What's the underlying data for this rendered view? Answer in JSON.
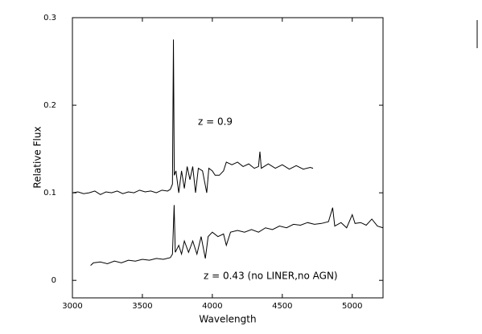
{
  "chart_data": {
    "type": "line",
    "xlabel": "Wavelength",
    "ylabel": "Relative Flux",
    "annotations": [
      "z = 0.9",
      "z = 0.43 (no LINER,no AGN)"
    ],
    "xlim": [
      3000,
      5220
    ],
    "ylim": [
      -0.02,
      0.3
    ],
    "xticks": [
      3000,
      3500,
      4000,
      4500,
      5000
    ],
    "yticks": [
      0,
      0.1,
      0.2,
      0.3
    ],
    "grid": false,
    "series": [
      {
        "color": "#000000",
        "x": [
          3000,
          3040,
          3080,
          3120,
          3160,
          3200,
          3240,
          3280,
          3320,
          3360,
          3400,
          3440,
          3480,
          3520,
          3560,
          3600,
          3640,
          3680,
          3700,
          3715,
          3722,
          3728,
          3740,
          3760,
          3780,
          3800,
          3820,
          3840,
          3860,
          3880,
          3900,
          3930,
          3960,
          3975,
          4000,
          4020,
          4050,
          4080,
          4100,
          4140,
          4180,
          4220,
          4260,
          4300,
          4330,
          4340,
          4350,
          4400,
          4450,
          4500,
          4550,
          4600,
          4650,
          4700,
          4720
        ],
        "values": [
          0.1,
          0.101,
          0.099,
          0.1,
          0.102,
          0.098,
          0.101,
          0.1,
          0.102,
          0.099,
          0.101,
          0.1,
          0.103,
          0.101,
          0.102,
          0.1,
          0.103,
          0.102,
          0.104,
          0.11,
          0.275,
          0.12,
          0.125,
          0.1,
          0.125,
          0.105,
          0.13,
          0.115,
          0.13,
          0.1,
          0.128,
          0.125,
          0.1,
          0.128,
          0.125,
          0.12,
          0.12,
          0.125,
          0.135,
          0.132,
          0.135,
          0.13,
          0.133,
          0.128,
          0.13,
          0.147,
          0.128,
          0.133,
          0.128,
          0.132,
          0.127,
          0.131,
          0.127,
          0.129,
          0.128
        ]
      },
      {
        "color": "#000000",
        "x": [
          3130,
          3150,
          3200,
          3250,
          3300,
          3350,
          3400,
          3450,
          3500,
          3550,
          3600,
          3650,
          3700,
          3715,
          3727,
          3735,
          3760,
          3780,
          3800,
          3830,
          3860,
          3890,
          3920,
          3950,
          3970,
          4000,
          4040,
          4080,
          4100,
          4130,
          4180,
          4230,
          4280,
          4330,
          4380,
          4430,
          4480,
          4530,
          4580,
          4630,
          4680,
          4730,
          4780,
          4830,
          4860,
          4875,
          4920,
          4960,
          5000,
          5020,
          5060,
          5100,
          5140,
          5180,
          5220
        ],
        "values": [
          0.017,
          0.02,
          0.021,
          0.019,
          0.022,
          0.02,
          0.023,
          0.022,
          0.024,
          0.023,
          0.025,
          0.024,
          0.026,
          0.03,
          0.086,
          0.032,
          0.04,
          0.03,
          0.045,
          0.032,
          0.045,
          0.03,
          0.05,
          0.025,
          0.05,
          0.055,
          0.05,
          0.053,
          0.04,
          0.055,
          0.057,
          0.055,
          0.058,
          0.055,
          0.06,
          0.058,
          0.062,
          0.06,
          0.064,
          0.063,
          0.066,
          0.064,
          0.065,
          0.067,
          0.083,
          0.062,
          0.066,
          0.06,
          0.075,
          0.065,
          0.066,
          0.063,
          0.07,
          0.062,
          0.06
        ]
      }
    ]
  }
}
